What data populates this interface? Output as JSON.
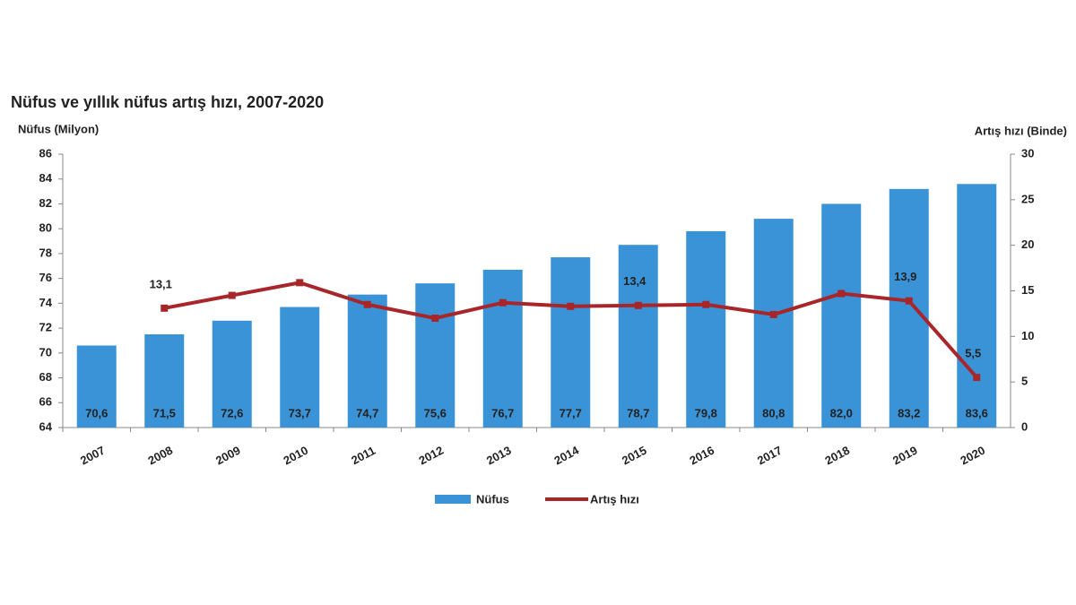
{
  "chart_data": {
    "type": "bar-line",
    "title": "Nüfus ve yıllık nüfus artış hızı, 2007-2020",
    "y_label": "Nüfus (Milyon)",
    "y2_label": "Artış hızı (Binde)",
    "categories": [
      "2007",
      "2008",
      "2009",
      "2010",
      "2011",
      "2012",
      "2013",
      "2014",
      "2015",
      "2016",
      "2017",
      "2018",
      "2019",
      "2020"
    ],
    "series": [
      {
        "name": "Nüfus",
        "type": "bar",
        "color": "#3a93d6",
        "axis": "y",
        "values": [
          70.6,
          71.5,
          72.6,
          73.7,
          74.7,
          75.6,
          76.7,
          77.7,
          78.7,
          79.8,
          80.8,
          82.0,
          83.2,
          83.6
        ],
        "value_labels": [
          "70,6",
          "71,5",
          "72,6",
          "73,7",
          "74,7",
          "75,6",
          "76,7",
          "77,7",
          "78,7",
          "79,8",
          "80,8",
          "82,0",
          "83,2",
          "83,6"
        ]
      },
      {
        "name": "Artış hızı",
        "type": "line",
        "color": "#a8262a",
        "axis": "y2",
        "values": [
          null,
          13.1,
          14.5,
          15.9,
          13.5,
          12.0,
          13.7,
          13.3,
          13.4,
          13.5,
          12.4,
          14.7,
          13.9,
          5.5
        ],
        "value_labels": [
          null,
          "13,1",
          null,
          null,
          null,
          null,
          null,
          null,
          "13,4",
          null,
          null,
          null,
          "13,9",
          "5,5"
        ]
      }
    ],
    "ylim": [
      64,
      86
    ],
    "yticks": [
      64,
      66,
      68,
      70,
      72,
      74,
      76,
      78,
      80,
      82,
      84,
      86
    ],
    "y2lim": [
      0,
      30
    ],
    "y2ticks": [
      0,
      5,
      10,
      15,
      20,
      25,
      30
    ],
    "grid": false,
    "legend": "bottom"
  }
}
